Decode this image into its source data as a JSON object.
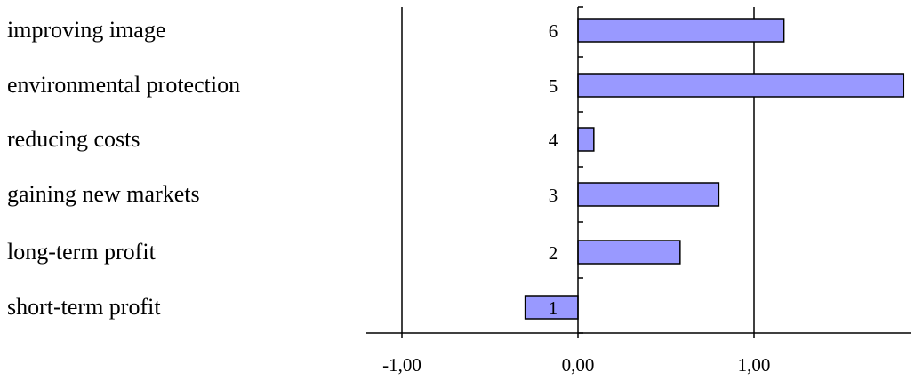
{
  "chart_data": {
    "type": "bar",
    "orientation": "horizontal",
    "title": "",
    "xlabel": "",
    "ylabel": "",
    "categories": [
      "short-term profit",
      "long-term profit",
      "gaining new markets",
      "reducing costs",
      "environmental protection",
      "improving image"
    ],
    "category_numbers": [
      "1",
      "2",
      "3",
      "4",
      "5",
      "6"
    ],
    "values": [
      -0.3,
      0.58,
      0.8,
      0.09,
      1.85,
      1.17
    ],
    "xlim": [
      -1.2,
      1.95
    ],
    "x_ticks": [
      -1,
      0,
      1
    ],
    "x_tick_labels": [
      "-1,00",
      "0,00",
      "1,00"
    ],
    "grid": "vertical gridlines at -1 and 1",
    "legend": "none",
    "colors": {
      "bar_fill": "#9999ff",
      "bar_stroke": "#000000",
      "axis": "#000000",
      "text": "#000000",
      "background": "#ffffff"
    }
  }
}
